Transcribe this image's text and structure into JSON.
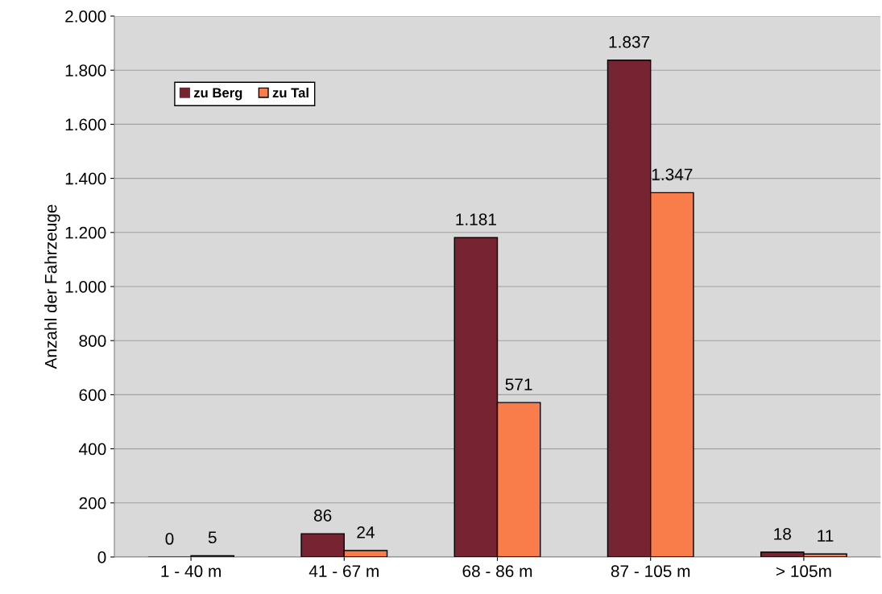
{
  "chart_data": {
    "type": "bar",
    "ylabel": "Anzahl der Fahrzeuge",
    "categories": [
      "1 - 40 m",
      "41 - 67 m",
      "68 - 86 m",
      "87 - 105 m",
      "> 105m"
    ],
    "series": [
      {
        "name": "zu Berg",
        "color": "#772432",
        "values": [
          0,
          86,
          1181,
          1837,
          18
        ],
        "value_labels": [
          "0",
          "86",
          "1.181",
          "1.837",
          "18"
        ]
      },
      {
        "name": "zu Tal",
        "color": "#f97d4a",
        "values": [
          5,
          24,
          571,
          1347,
          11
        ],
        "value_labels": [
          "5",
          "24",
          "571",
          "1.347",
          "11"
        ]
      }
    ],
    "ylim": [
      0,
      2000
    ],
    "yticks": [
      0,
      200,
      400,
      600,
      800,
      {
        "value": 1000,
        "label": "1.000"
      },
      {
        "value": 1200,
        "label": "1.200"
      },
      {
        "value": 1400,
        "label": "1.400"
      },
      {
        "value": 1600,
        "label": "1.600"
      },
      {
        "value": 1800,
        "label": "1.800"
      },
      {
        "value": 2000,
        "label": "2.000"
      }
    ],
    "grid": "y",
    "legend": "top left"
  }
}
